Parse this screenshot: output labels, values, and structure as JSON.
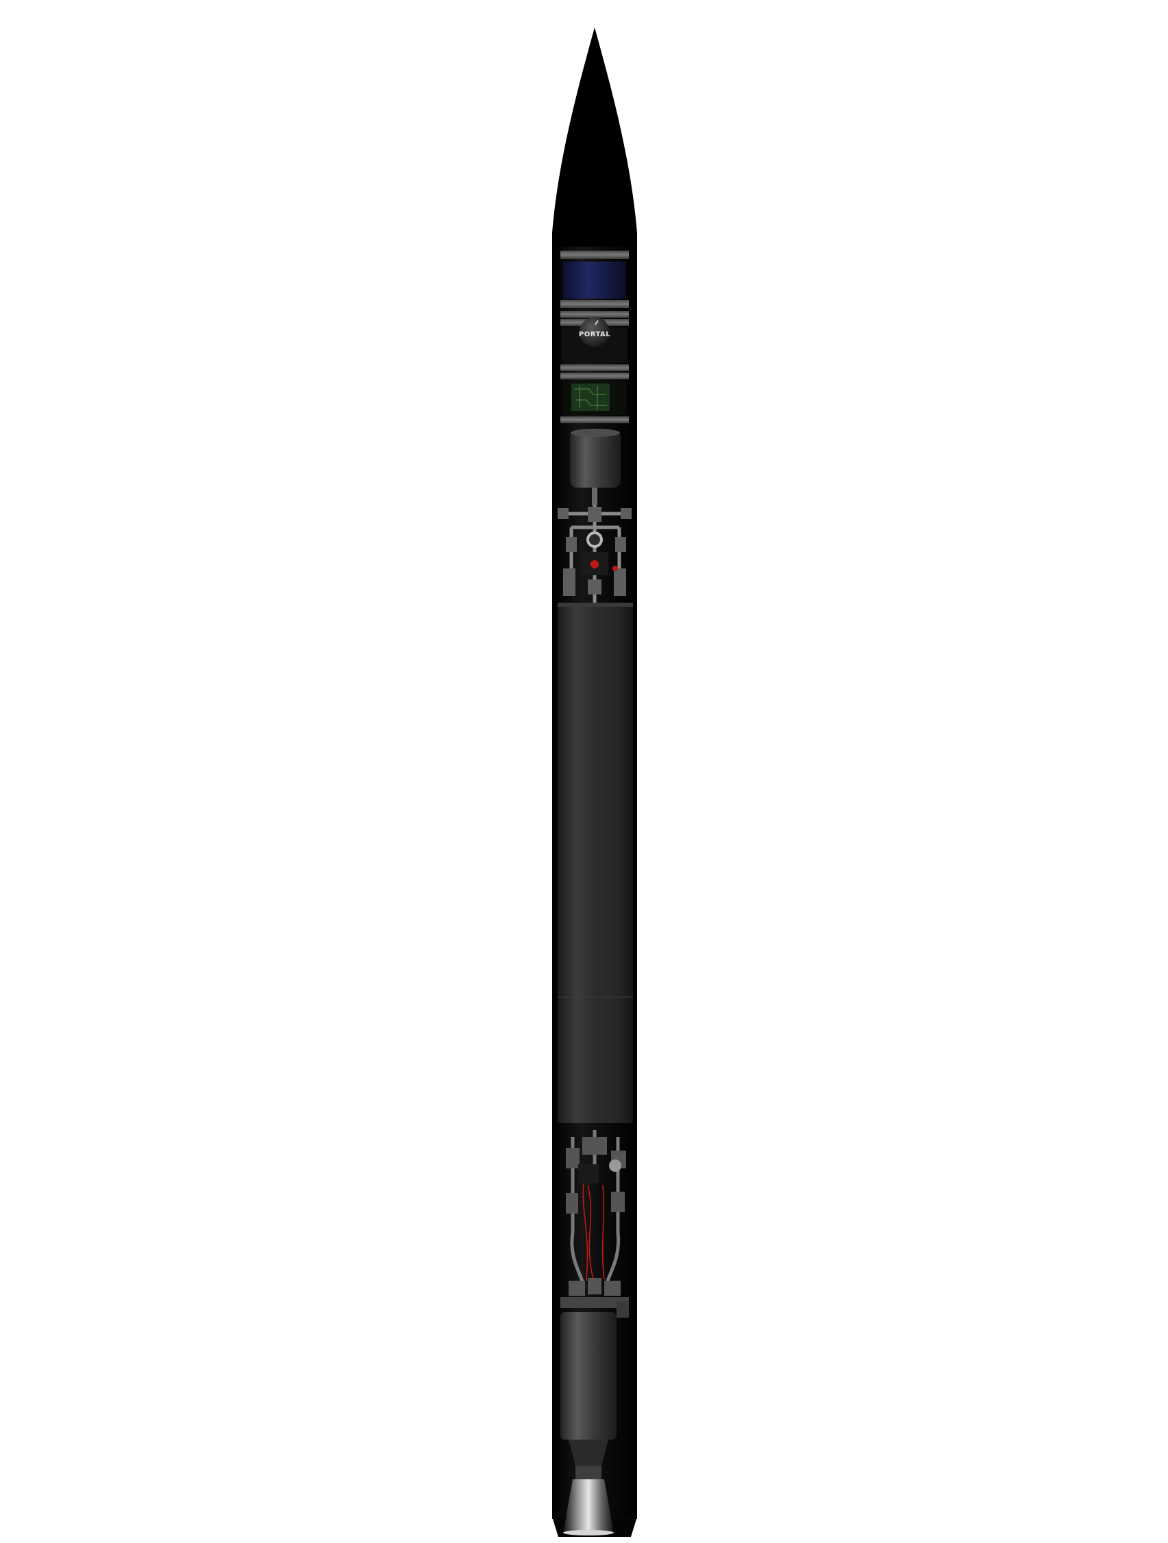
{
  "image": {
    "subject": "rocket-cutaway-render",
    "background_color": "#ffffff",
    "body_color": "#0b0b0b",
    "tank_color": "#2e2e2e",
    "payload_band_color": "#1a1f4a",
    "circuit_color": "#1f3d1f",
    "wire_color": "#c01818"
  },
  "logo": {
    "text": "PORTAL"
  }
}
